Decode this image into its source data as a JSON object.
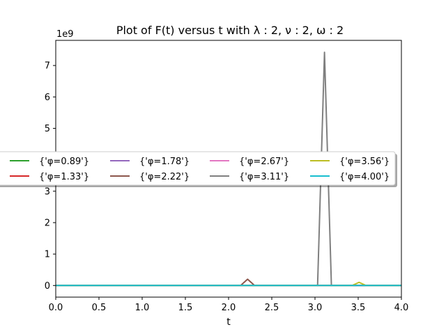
{
  "chart_data": {
    "type": "line",
    "title": "Plot of F(t) versus t with λ : 2, ν : 2, ω : 2",
    "xlabel": "t",
    "ylabel": "",
    "y_offset_label": "1e9",
    "xlim": [
      0,
      4
    ],
    "ylim": [
      -0.37,
      7.8
    ],
    "y_scale": 1000000000,
    "xticks": [
      0,
      0.5,
      1,
      1.5,
      2,
      2.5,
      3,
      3.5,
      4
    ],
    "xtick_labels": [
      "0.0",
      "0.5",
      "1.0",
      "1.5",
      "2.0",
      "2.5",
      "3.0",
      "3.5",
      "4.0"
    ],
    "yticks": [
      0,
      1,
      2,
      3,
      4,
      5,
      6,
      7
    ],
    "ytick_labels": [
      "0",
      "1",
      "2",
      "3",
      "4",
      "5",
      "6",
      "7"
    ],
    "grid": false,
    "legend_position": "center-left",
    "legend_columns": 4,
    "series": [
      {
        "name": "{'φ=0.89'}",
        "color": "#2ca02c",
        "x": [
          0,
          4
        ],
        "y": [
          0,
          0
        ]
      },
      {
        "name": "{'φ=1.33'}",
        "color": "#d62728",
        "x": [
          0,
          4
        ],
        "y": [
          0,
          0
        ]
      },
      {
        "name": "{'φ=1.78'}",
        "color": "#9467bd",
        "x": [
          0,
          4
        ],
        "y": [
          0,
          0
        ]
      },
      {
        "name": "{'φ=2.22'}",
        "color": "#8c564b",
        "x": [
          0,
          2.14,
          2.22,
          2.3,
          4
        ],
        "y": [
          0,
          0,
          0.2,
          0,
          0
        ]
      },
      {
        "name": "{'φ=2.67'}",
        "color": "#e377c2",
        "x": [
          0,
          4
        ],
        "y": [
          0,
          0
        ]
      },
      {
        "name": "{'φ=3.11'}",
        "color": "#7f7f7f",
        "x": [
          0,
          3.03,
          3.11,
          3.19,
          4
        ],
        "y": [
          0,
          0,
          7.42,
          0,
          0
        ]
      },
      {
        "name": "{'φ=3.56'}",
        "color": "#bcbd22",
        "x": [
          0,
          3.43,
          3.51,
          3.59,
          4
        ],
        "y": [
          0,
          0,
          0.1,
          0,
          0
        ]
      },
      {
        "name": "{'φ=4.00'}",
        "color": "#17becf",
        "x": [
          0,
          4
        ],
        "y": [
          0,
          0
        ]
      }
    ]
  }
}
